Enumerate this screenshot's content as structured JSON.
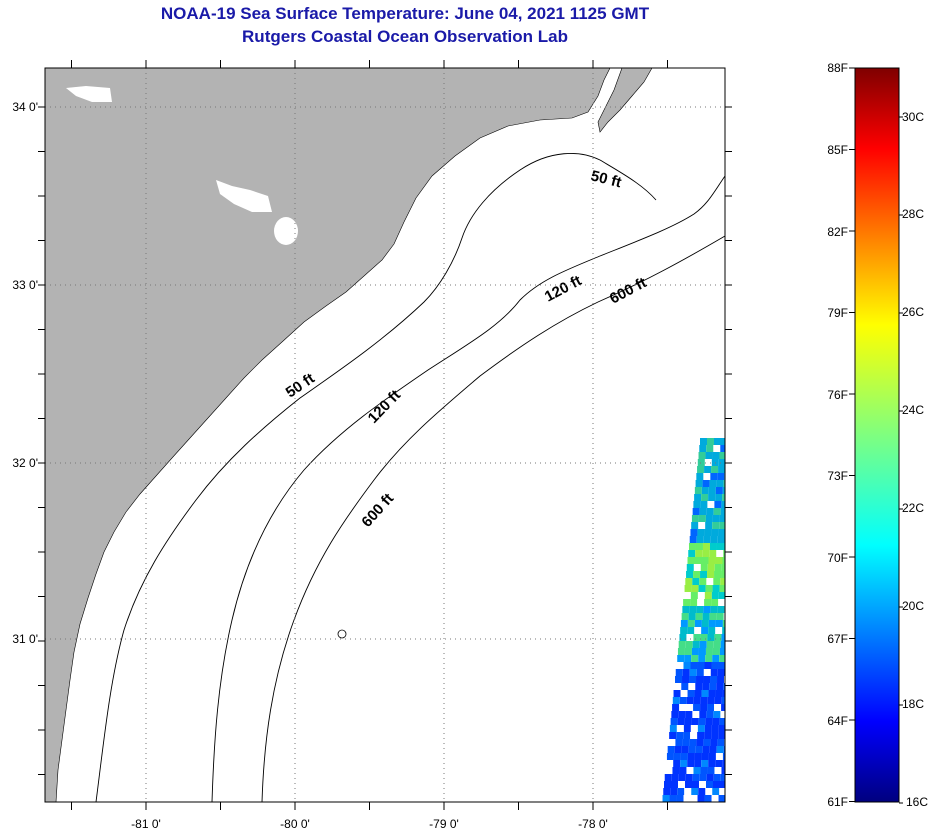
{
  "header": {
    "title": "NOAA-19 Sea Surface Temperature:  June 04, 2021 1125 GMT",
    "subtitle": "Rutgers Coastal Ocean Observation Lab"
  },
  "map": {
    "lat_labels": [
      "34 0'",
      "33 0'",
      "32 0'",
      "31 0'"
    ],
    "lon_labels": [
      "-81 0'",
      "-80 0'",
      "-79 0'",
      "-78 0'"
    ],
    "contours": [
      {
        "label": "50 ft"
      },
      {
        "label": "50 ft"
      },
      {
        "label": "120 ft"
      },
      {
        "label": "120 ft"
      },
      {
        "label": "600 ft"
      },
      {
        "label": "600 ft"
      }
    ]
  },
  "colorbar": {
    "fahrenheit": [
      "88F",
      "85F",
      "82F",
      "79F",
      "76F",
      "73F",
      "70F",
      "67F",
      "64F",
      "61F"
    ],
    "celsius": [
      "30C",
      "28C",
      "26C",
      "24C",
      "22C",
      "20C",
      "18C",
      "16C"
    ],
    "colors": {
      "land": "#b3b3b3",
      "ocean": "#ffffff",
      "title": "#1a1aa8"
    }
  }
}
